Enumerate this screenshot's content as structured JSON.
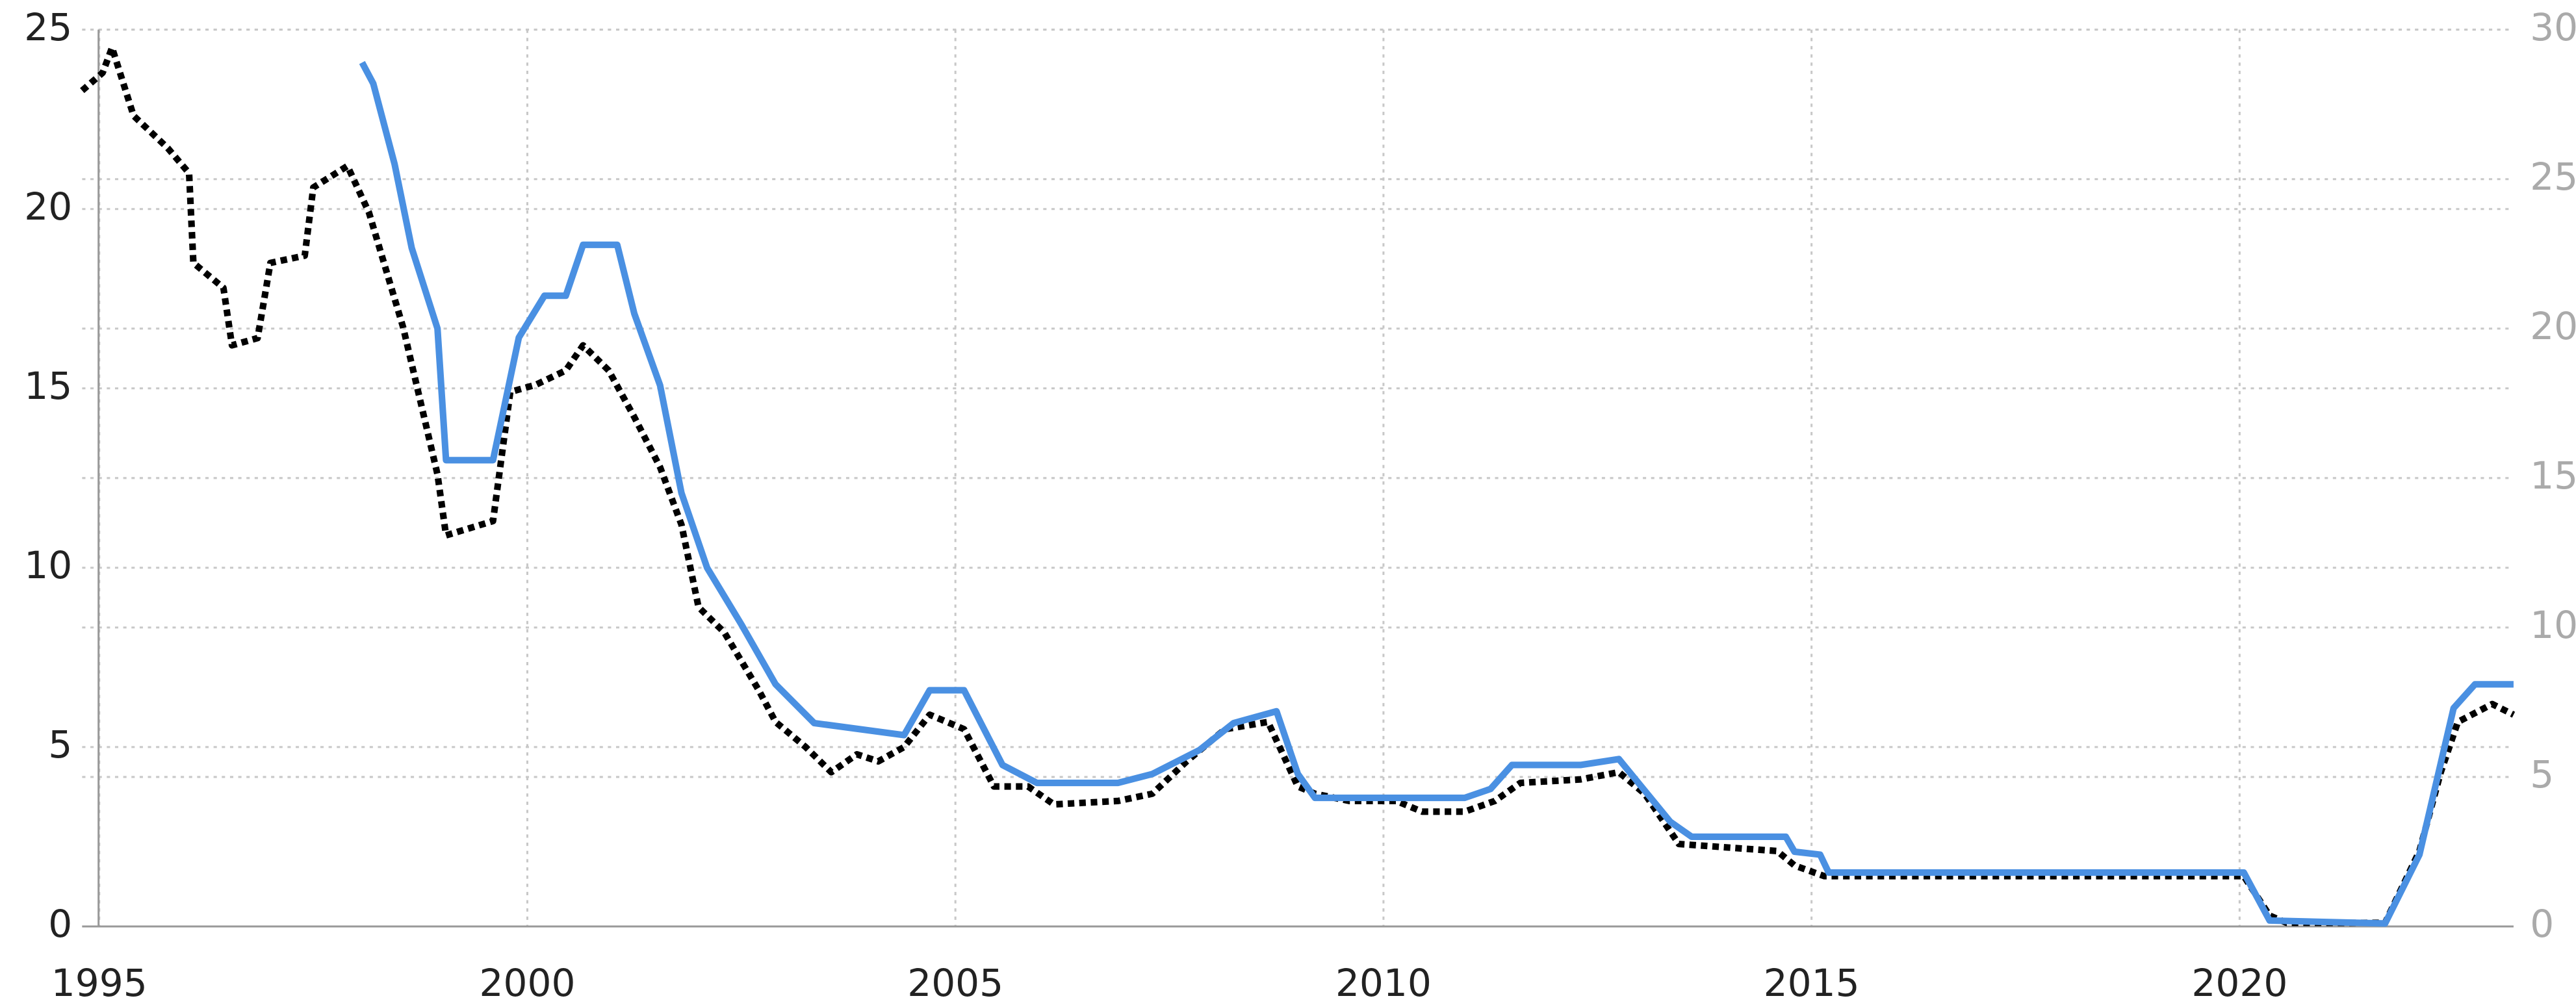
{
  "chart_data": {
    "type": "line",
    "xlim": [
      1994.8,
      2023.2
    ],
    "xticks": [
      1995,
      2000,
      2005,
      2010,
      2015,
      2020
    ],
    "ylim": [
      0,
      25
    ],
    "yticks": [
      0,
      5,
      10,
      15,
      20,
      25
    ],
    "y2lim": [
      0,
      30
    ],
    "y2ticks": [
      0,
      5,
      10,
      15,
      20,
      25,
      30
    ],
    "grid": true,
    "series": [
      {
        "color": "#000000",
        "style": "dotted",
        "x": [
          1994.8,
          1995.04,
          1995.15,
          1995.4,
          1995.8,
          1996.05,
          1996.1,
          1996.45,
          1996.55,
          1996.85,
          1997.0,
          1997.4,
          1997.5,
          1997.9,
          1998.15,
          1998.55,
          1998.95,
          1999.05,
          1999.6,
          1999.8,
          2000.1,
          2000.45,
          2000.65,
          2000.95,
          2001.25,
          2001.55,
          2001.8,
          2002.0,
          2002.3,
          2002.7,
          2002.9,
          2003.25,
          2003.55,
          2003.85,
          2004.1,
          2004.4,
          2004.7,
          2005.1,
          2005.45,
          2005.85,
          2006.15,
          2006.9,
          2007.3,
          2007.7,
          2008.15,
          2008.65,
          2009.0,
          2009.2,
          2009.6,
          2010.15,
          2010.45,
          2010.95,
          2011.3,
          2011.6,
          2012.3,
          2012.75,
          2013.05,
          2013.45,
          2014.6,
          2014.8,
          2015.15,
          2016.9,
          2018.8,
          2020.05,
          2020.35,
          2020.55,
          2021.7,
          2022.1,
          2022.35,
          2022.55,
          2022.95,
          2023.2
        ],
        "values": [
          23.3,
          23.8,
          24.5,
          22.6,
          21.7,
          21.0,
          18.5,
          17.8,
          16.2,
          16.4,
          18.5,
          18.7,
          20.6,
          21.2,
          19.9,
          16.7,
          12.6,
          10.9,
          11.3,
          14.9,
          15.1,
          15.5,
          16.2,
          15.5,
          14.2,
          12.8,
          11.2,
          8.9,
          8.2,
          6.6,
          5.7,
          5.0,
          4.3,
          4.8,
          4.6,
          5.0,
          5.9,
          5.5,
          3.9,
          3.9,
          3.4,
          3.5,
          3.7,
          4.6,
          5.5,
          5.7,
          3.9,
          3.7,
          3.5,
          3.5,
          3.2,
          3.2,
          3.5,
          4.0,
          4.1,
          4.3,
          3.7,
          2.3,
          2.1,
          1.7,
          1.4,
          1.4,
          1.4,
          1.4,
          0.3,
          0.1,
          0.1,
          2.1,
          4.3,
          5.7,
          6.2,
          5.9
        ]
      },
      {
        "color": "#4a90e2",
        "axis": "y2",
        "x": [
          1998.07,
          1998.2,
          1998.45,
          1998.65,
          1998.95,
          1999.05,
          1999.6,
          1999.9,
          2000.2,
          2000.45,
          2000.65,
          2001.05,
          2001.25,
          2001.55,
          2001.8,
          2002.1,
          2002.5,
          2002.9,
          2003.35,
          2004.4,
          2004.7,
          2005.1,
          2005.55,
          2005.95,
          2006.9,
          2007.3,
          2007.85,
          2008.25,
          2008.75,
          2009.0,
          2009.2,
          2010.15,
          2010.95,
          2011.25,
          2011.5,
          2012.3,
          2012.75,
          2013.35,
          2013.6,
          2014.7,
          2014.8,
          2015.1,
          2015.2,
          2020.05,
          2020.35,
          2021.7,
          2022.1,
          2022.5,
          2022.75,
          2023.2
        ],
        "values": [
          28.9,
          28.2,
          25.5,
          22.7,
          20.0,
          15.6,
          15.6,
          19.7,
          21.1,
          21.1,
          22.8,
          22.8,
          20.5,
          18.1,
          14.5,
          12.0,
          10.1,
          8.1,
          6.8,
          6.4,
          7.9,
          7.9,
          5.4,
          4.8,
          4.8,
          5.1,
          5.9,
          6.8,
          7.2,
          5.1,
          4.3,
          4.3,
          4.3,
          4.6,
          5.4,
          5.4,
          5.6,
          3.5,
          3.0,
          3.0,
          2.5,
          2.4,
          1.8,
          1.8,
          0.2,
          0.1,
          2.4,
          7.3,
          8.1,
          8.1
        ]
      }
    ]
  }
}
